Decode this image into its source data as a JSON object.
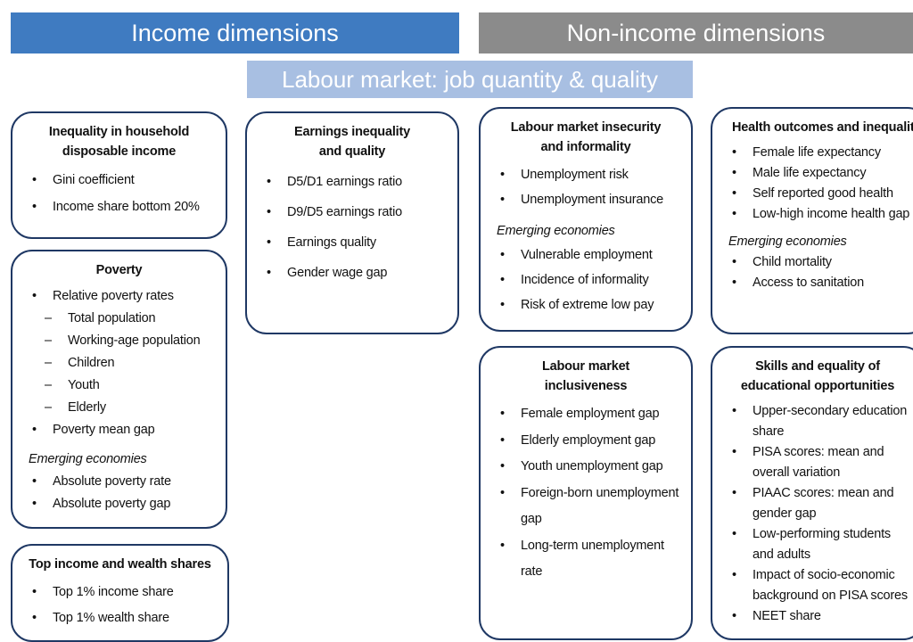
{
  "headers": {
    "income": "Income dimensions",
    "non_income": "Non-income dimensions",
    "labour": "Labour market: job quantity & quality"
  },
  "boxes": [
    {
      "title": "Inequality in household disposable income",
      "items": [
        {
          "text": "Gini coefficient"
        },
        {
          "text": "Income share bottom 20%"
        }
      ]
    },
    {
      "title": "Poverty",
      "items": [
        {
          "text": "Relative poverty rates",
          "sub": [
            "Total population",
            "Working-age population",
            "Children",
            "Youth",
            "Elderly"
          ]
        },
        {
          "text": "Poverty mean gap"
        }
      ],
      "emerging": {
        "label": "Emerging economies",
        "items": [
          {
            "text": "Absolute poverty rate"
          },
          {
            "text": "Absolute poverty gap"
          }
        ]
      }
    },
    {
      "title": "Top income and wealth shares",
      "items": [
        {
          "text": "Top 1% income share"
        },
        {
          "text": "Top 1% wealth share"
        }
      ]
    },
    {
      "title": "Earnings inequality and quality",
      "items": [
        {
          "text": "D5/D1 earnings ratio"
        },
        {
          "text": "D9/D5 earnings ratio"
        },
        {
          "text": "Earnings quality"
        },
        {
          "text": "Gender wage gap"
        }
      ]
    },
    {
      "title": "Labour market insecurity and informality",
      "items": [
        {
          "text": "Unemployment risk"
        },
        {
          "text": "Unemployment insurance"
        }
      ],
      "emerging": {
        "label": "Emerging economies",
        "items": [
          {
            "text": "Vulnerable employment"
          },
          {
            "text": "Incidence of informality"
          },
          {
            "text": "Risk of extreme low pay"
          }
        ]
      }
    },
    {
      "title": "Labour market inclusiveness",
      "items": [
        {
          "text": "Female employment gap"
        },
        {
          "text": "Elderly employment gap"
        },
        {
          "text": "Youth unemployment gap"
        },
        {
          "text": "Foreign-born unemployment gap"
        },
        {
          "text": "Long-term unemployment rate"
        }
      ]
    },
    {
      "title": "Health outcomes and inequalities",
      "items": [
        {
          "text": "Female life expectancy"
        },
        {
          "text": "Male life expectancy"
        },
        {
          "text": "Self reported good health"
        },
        {
          "text": "Low-high income health gap"
        }
      ],
      "emerging": {
        "label": "Emerging economies",
        "items": [
          {
            "text": "Child mortality"
          },
          {
            "text": "Access to sanitation"
          }
        ]
      }
    },
    {
      "title": "Skills and equality of educational opportunities",
      "items": [
        {
          "text": "Upper-secondary education share"
        },
        {
          "text": "PISA scores: mean and overall variation"
        },
        {
          "text": "PIAAC scores: mean and gender gap"
        },
        {
          "text": "Low-performing students and adults"
        },
        {
          "text": "Impact of socio-economic background on PISA scores"
        },
        {
          "text": "NEET share"
        }
      ]
    }
  ]
}
